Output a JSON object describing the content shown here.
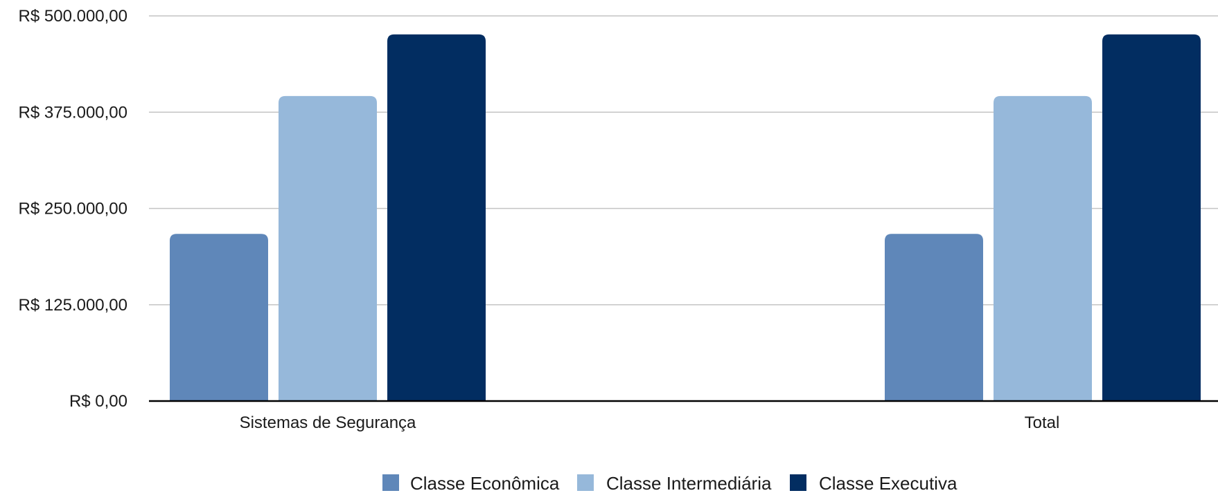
{
  "chart_data": {
    "type": "bar",
    "title": "",
    "xlabel": "",
    "ylabel": "",
    "categories": [
      "Sistemas de Segurança",
      "Total"
    ],
    "series": [
      {
        "name": "Classe Econômica",
        "values": [
          217000,
          217000
        ],
        "color": "#5f87b9"
      },
      {
        "name": "Classe Intermediária",
        "values": [
          396000,
          396000
        ],
        "color": "#96b8da"
      },
      {
        "name": "Classe Executiva",
        "values": [
          476000,
          476000
        ],
        "color": "#022d61"
      }
    ],
    "ylim": [
      0,
      500000
    ],
    "yticks": [
      0,
      125000,
      250000,
      375000,
      500000
    ],
    "ytick_labels": [
      "R$ 0,00",
      "R$ 125.000,00",
      "R$ 250.000,00",
      "R$ 375.000,00",
      "R$ 500.000,00"
    ],
    "grid": true,
    "legend_position": "bottom"
  }
}
